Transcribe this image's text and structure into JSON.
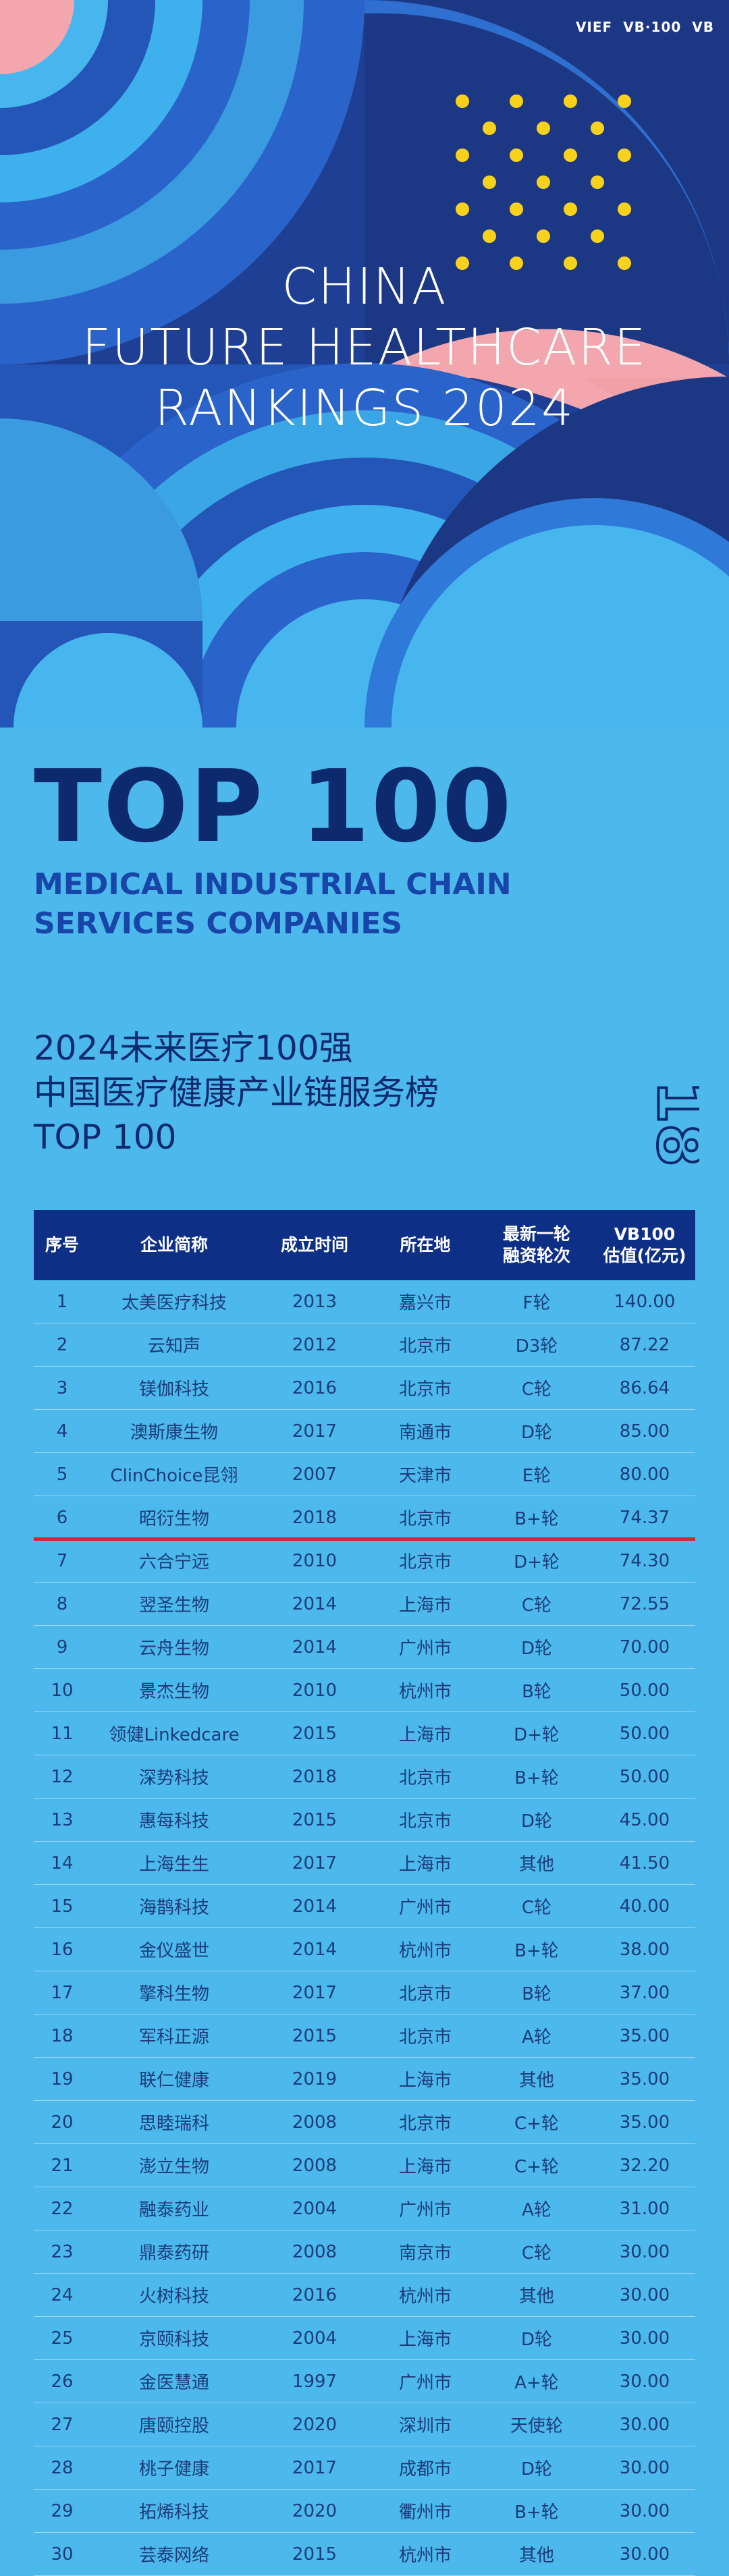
{
  "hero": {
    "logos": [
      "VIEF",
      "VB·100",
      "VB"
    ],
    "title_lines": [
      "CHINA",
      "FUTURE HEALTHCARE",
      "RANKINGS 2024"
    ],
    "colors": {
      "navy": "#1e3a8a",
      "royal": "#2a63c9",
      "sky": "#38a9e8",
      "pink": "#f3a6ad",
      "dot": "#f8d21a"
    }
  },
  "header": {
    "top": "TOP 100",
    "subtitle_lines": [
      "MEDICAL INDUSTRIAL CHAIN",
      "SERVICES COMPANIES"
    ]
  },
  "cn_title": {
    "lines": [
      "2024未来医疗100强",
      "中国医疗健康产业链服务榜",
      "TOP 100"
    ],
    "side_mark": "18"
  },
  "table": {
    "columns": [
      "序号",
      "企业简称",
      "成立时间",
      "所在地",
      "最新一轮\n融资轮次",
      "VB100\n估值(亿元)"
    ],
    "highlight_row_index": 5,
    "rows": [
      [
        "1",
        "太美医疗科技",
        "2013",
        "嘉兴市",
        "F轮",
        "140.00"
      ],
      [
        "2",
        "云知声",
        "2012",
        "北京市",
        "D3轮",
        "87.22"
      ],
      [
        "3",
        "镁伽科技",
        "2016",
        "北京市",
        "C轮",
        "86.64"
      ],
      [
        "4",
        "澳斯康生物",
        "2017",
        "南通市",
        "D轮",
        "85.00"
      ],
      [
        "5",
        "ClinChoice昆翎",
        "2007",
        "天津市",
        "E轮",
        "80.00"
      ],
      [
        "6",
        "昭衍生物",
        "2018",
        "北京市",
        "B+轮",
        "74.37"
      ],
      [
        "7",
        "六合宁远",
        "2010",
        "北京市",
        "D+轮",
        "74.30"
      ],
      [
        "8",
        "翌圣生物",
        "2014",
        "上海市",
        "C轮",
        "72.55"
      ],
      [
        "9",
        "云舟生物",
        "2014",
        "广州市",
        "D轮",
        "70.00"
      ],
      [
        "10",
        "景杰生物",
        "2010",
        "杭州市",
        "B轮",
        "50.00"
      ],
      [
        "11",
        "领健Linkedcare",
        "2015",
        "上海市",
        "D+轮",
        "50.00"
      ],
      [
        "12",
        "深势科技",
        "2018",
        "北京市",
        "B+轮",
        "50.00"
      ],
      [
        "13",
        "惠每科技",
        "2015",
        "北京市",
        "D轮",
        "45.00"
      ],
      [
        "14",
        "上海生生",
        "2017",
        "上海市",
        "其他",
        "41.50"
      ],
      [
        "15",
        "海鹊科技",
        "2014",
        "广州市",
        "C轮",
        "40.00"
      ],
      [
        "16",
        "金仪盛世",
        "2014",
        "杭州市",
        "B+轮",
        "38.00"
      ],
      [
        "17",
        "擎科生物",
        "2017",
        "北京市",
        "B轮",
        "37.00"
      ],
      [
        "18",
        "军科正源",
        "2015",
        "北京市",
        "A轮",
        "35.00"
      ],
      [
        "19",
        "联仁健康",
        "2019",
        "上海市",
        "其他",
        "35.00"
      ],
      [
        "20",
        "思睦瑞科",
        "2008",
        "北京市",
        "C+轮",
        "35.00"
      ],
      [
        "21",
        "澎立生物",
        "2008",
        "上海市",
        "C+轮",
        "32.20"
      ],
      [
        "22",
        "融泰药业",
        "2004",
        "广州市",
        "A轮",
        "31.00"
      ],
      [
        "23",
        "鼎泰药研",
        "2008",
        "南京市",
        "C轮",
        "30.00"
      ],
      [
        "24",
        "火树科技",
        "2016",
        "杭州市",
        "其他",
        "30.00"
      ],
      [
        "25",
        "京颐科技",
        "2004",
        "上海市",
        "D轮",
        "30.00"
      ],
      [
        "26",
        "金医慧通",
        "1997",
        "广州市",
        "A+轮",
        "30.00"
      ],
      [
        "27",
        "唐颐控股",
        "2020",
        "深圳市",
        "天使轮",
        "30.00"
      ],
      [
        "28",
        "桃子健康",
        "2017",
        "成都市",
        "D轮",
        "30.00"
      ],
      [
        "29",
        "拓烯科技",
        "2020",
        "衢州市",
        "B+轮",
        "30.00"
      ],
      [
        "30",
        "芸泰网络",
        "2015",
        "杭州市",
        "其他",
        "30.00"
      ]
    ]
  }
}
